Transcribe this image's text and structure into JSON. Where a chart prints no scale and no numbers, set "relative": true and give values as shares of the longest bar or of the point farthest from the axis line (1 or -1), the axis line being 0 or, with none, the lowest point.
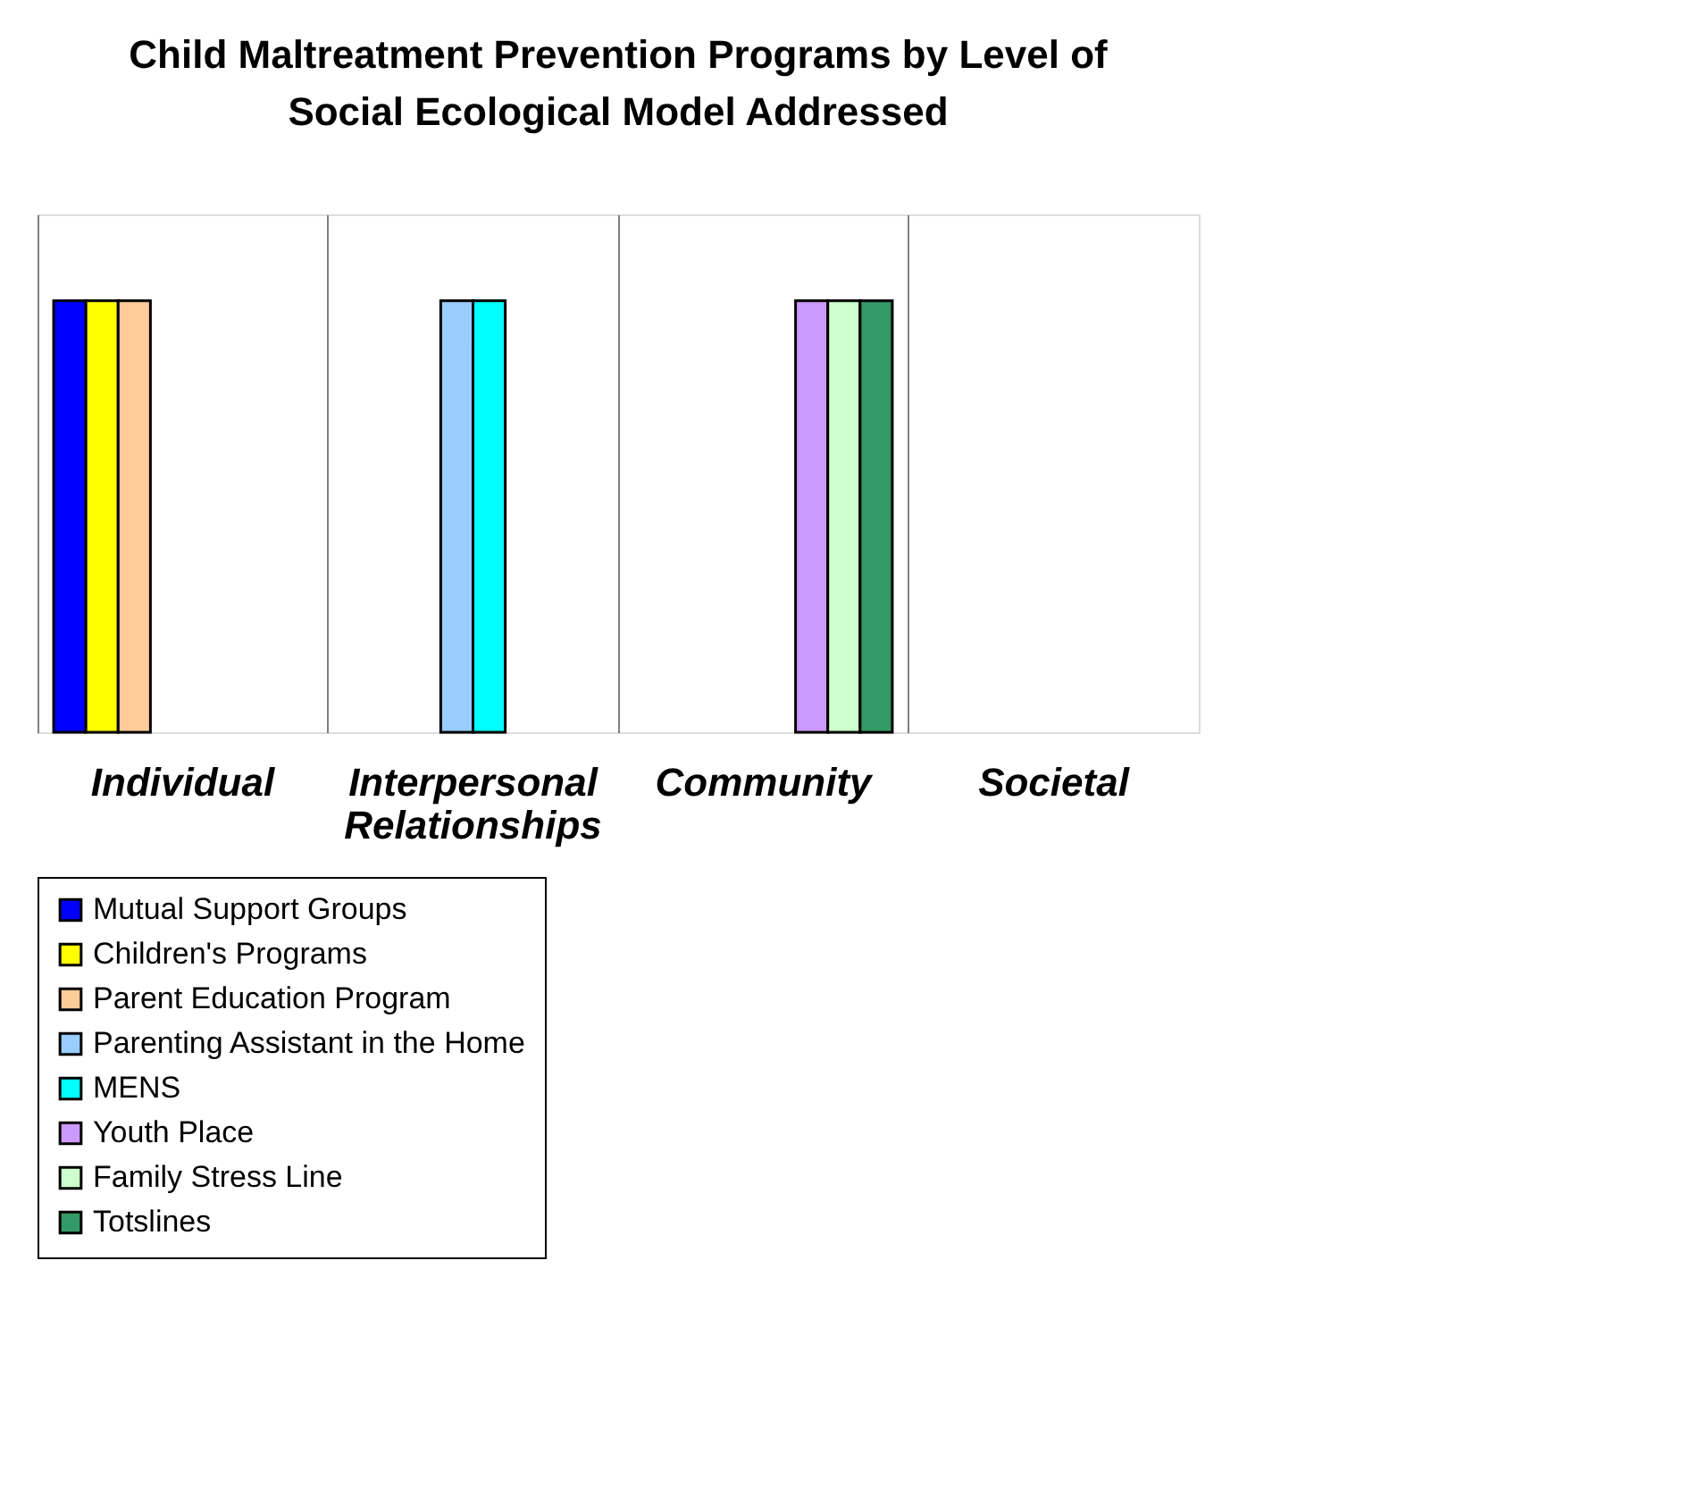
{
  "chart_data": {
    "type": "bar",
    "title": "Child Maltreatment Prevention Programs by Level of Social Ecological Model Addressed",
    "categories": [
      "Individual",
      "Interpersonal Relationships",
      "Community",
      "Societal"
    ],
    "relative": true,
    "grid": "x",
    "legend": "bottom",
    "series": [
      {
        "name": "Mutual Support Groups",
        "color": "#0000ff",
        "values": [
          1,
          null,
          null,
          null
        ]
      },
      {
        "name": "Children's Programs",
        "color": "#ffff00",
        "values": [
          1,
          null,
          null,
          null
        ]
      },
      {
        "name": "Parent Education Program",
        "color": "#ffcc99",
        "values": [
          1,
          null,
          null,
          null
        ]
      },
      {
        "name": "Parenting Assistant in the Home",
        "color": "#99ccff",
        "values": [
          null,
          1,
          null,
          null
        ]
      },
      {
        "name": "MENS",
        "color": "#00ffff",
        "values": [
          null,
          1,
          null,
          null
        ]
      },
      {
        "name": "Youth Place",
        "color": "#cc99ff",
        "values": [
          null,
          null,
          1,
          null
        ]
      },
      {
        "name": "Family Stress Line",
        "color": "#ccffcc",
        "values": [
          null,
          null,
          1,
          null
        ]
      },
      {
        "name": "Totslines",
        "color": "#339966",
        "values": [
          null,
          null,
          1,
          null
        ]
      }
    ]
  }
}
